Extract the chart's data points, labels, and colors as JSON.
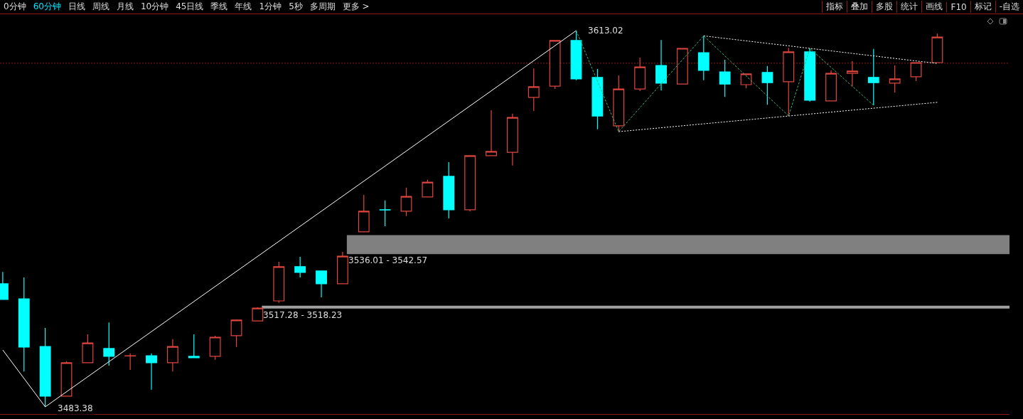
{
  "chart_data": {
    "type": "candlestick",
    "categories": [
      null,
      null,
      null,
      null,
      null,
      null,
      null,
      null,
      null,
      null,
      null,
      null,
      null,
      null,
      null,
      null,
      null,
      null,
      null,
      null,
      null,
      null,
      null,
      null,
      null,
      null,
      null,
      null,
      null,
      null,
      null,
      null,
      null,
      null,
      null,
      null,
      null,
      null,
      null,
      null,
      null,
      null,
      null,
      null,
      null
    ],
    "ohlc": [
      [
        3525.8,
        3529.9,
        3520.4,
        3520.4
      ],
      [
        3520.6,
        3528.0,
        3495.6,
        3504.0
      ],
      [
        3504.2,
        3510.6,
        3483.38,
        3487.1
      ],
      [
        3487.1,
        3499.1,
        3487.1,
        3498.6
      ],
      [
        3498.6,
        3508.4,
        3498.6,
        3505.4
      ],
      [
        3503.5,
        3512.5,
        3497.6,
        3500.8
      ],
      [
        3500.9,
        3501.8,
        3496.1,
        3501.0
      ],
      [
        3501.0,
        3501.8,
        3489.3,
        3498.6
      ],
      [
        3498.6,
        3506.7,
        3495.6,
        3504.2
      ],
      [
        3500.8,
        3508.4,
        3500.3,
        3500.3
      ],
      [
        3500.8,
        3507.9,
        3499.6,
        3507.4
      ],
      [
        3507.9,
        3513.5,
        3504.0,
        3513.3
      ],
      [
        3513.0,
        3517.7,
        3513.0,
        3517.4
      ],
      [
        3519.9,
        3533.4,
        3519.2,
        3531.7
      ],
      [
        3531.7,
        3535.1,
        3528.0,
        3529.7
      ],
      [
        3530.2,
        3530.4,
        3521.1,
        3525.8
      ],
      [
        3525.8,
        3536.8,
        3525.8,
        3535.3
      ],
      [
        3543.7,
        3556.4,
        3543.7,
        3550.8
      ],
      [
        3551.3,
        3554.5,
        3545.6,
        3551.2
      ],
      [
        3550.8,
        3558.9,
        3549.1,
        3555.9
      ],
      [
        3555.7,
        3561.6,
        3555.7,
        3560.8
      ],
      [
        3562.8,
        3567.7,
        3548.3,
        3551.3
      ],
      [
        3551.3,
        3569.9,
        3550.8,
        3569.9
      ],
      [
        3569.9,
        3585.6,
        3569.9,
        3571.4
      ],
      [
        3571.1,
        3584.4,
        3566.5,
        3583.1
      ],
      [
        3590.0,
        3600.0,
        3585.3,
        3593.7
      ],
      [
        3593.9,
        3609.6,
        3592.9,
        3609.6
      ],
      [
        3609.6,
        3613.02,
        3595.9,
        3596.4
      ],
      [
        3596.9,
        3599.8,
        3579.0,
        3583.6
      ],
      [
        3580.2,
        3597.6,
        3578.2,
        3592.9
      ],
      [
        3592.9,
        3603.7,
        3592.2,
        3600.5
      ],
      [
        3601.0,
        3609.8,
        3592.4,
        3594.9
      ],
      [
        3594.6,
        3606.9,
        3594.6,
        3606.9
      ],
      [
        3605.4,
        3611.2,
        3595.9,
        3599.3
      ],
      [
        3598.8,
        3603.0,
        3590.2,
        3594.6
      ],
      [
        3594.4,
        3598.1,
        3593.2,
        3598.1
      ],
      [
        3598.6,
        3600.8,
        3587.5,
        3595.1
      ],
      [
        3595.4,
        3607.1,
        3583.6,
        3605.7
      ],
      [
        3605.7,
        3606.9,
        3588.6,
        3589.0
      ],
      [
        3588.8,
        3599.3,
        3588.8,
        3598.3
      ],
      [
        3598.3,
        3602.5,
        3593.7,
        3599.1
      ],
      [
        3596.9,
        3606.7,
        3587.3,
        3595.1
      ],
      [
        3594.9,
        3601.0,
        3591.7,
        3596.4
      ],
      [
        3597.1,
        3602.0,
        3595.6,
        3602.0
      ],
      [
        3602.0,
        3612.0,
        3602.0,
        3610.8
      ]
    ],
    "colors": [
      "#00ffff",
      "#00ffff",
      "#00ffff",
      "#e0463e",
      "#e0463e",
      "#00ffff",
      "#e0463e",
      "#00ffff",
      "#e0463e",
      "#00ffff",
      "#e0463e",
      "#e0463e",
      "#e0463e",
      "#e0463e",
      "#00ffff",
      "#00ffff",
      "#e0463e",
      "#e0463e",
      "#00ffff",
      "#e0463e",
      "#e0463e",
      "#00ffff",
      "#e0463e",
      "#e0463e",
      "#e0463e",
      "#e0463e",
      "#e0463e",
      "#00ffff",
      "#00ffff",
      "#e0463e",
      "#e0463e",
      "#00ffff",
      "#e0463e",
      "#00ffff",
      "#00ffff",
      "#e0463e",
      "#00ffff",
      "#e0463e",
      "#00ffff",
      "#e0463e",
      "#e0463e",
      "#00ffff",
      "#e0463e",
      "#e0463e",
      "#e0463e"
    ],
    "series": [
      {
        "type": "line",
        "color": "#ffffff",
        "line_style": "solid",
        "values": [
          3503.0,
          null,
          3483.4,
          null,
          null,
          null,
          null,
          null,
          null,
          null,
          null,
          null,
          null,
          null,
          null,
          null,
          null,
          null,
          null,
          null,
          null,
          null,
          null,
          null,
          null,
          null,
          null,
          3613.0,
          null,
          null,
          null,
          null,
          null,
          null,
          null,
          null,
          null,
          null,
          null,
          null,
          null,
          null,
          null,
          null,
          null
        ]
      },
      {
        "type": "line",
        "color": "#3cb371",
        "line_style": "dashed",
        "values": [
          null,
          null,
          null,
          null,
          null,
          null,
          null,
          null,
          null,
          null,
          null,
          null,
          null,
          null,
          null,
          null,
          null,
          null,
          null,
          null,
          null,
          null,
          null,
          null,
          null,
          null,
          null,
          3613.0,
          null,
          3578.2,
          null,
          null,
          null,
          3611.2,
          null,
          null,
          null,
          3583.6,
          3606.9,
          null,
          null,
          3587.3,
          null,
          null,
          null
        ]
      },
      {
        "type": "line",
        "color": "#ffffff",
        "line_style": "dotted",
        "values": [
          null,
          null,
          null,
          null,
          null,
          null,
          null,
          null,
          null,
          null,
          null,
          null,
          null,
          null,
          null,
          null,
          null,
          null,
          null,
          null,
          null,
          null,
          null,
          null,
          null,
          null,
          null,
          null,
          null,
          null,
          null,
          null,
          null,
          3611.2,
          null,
          null,
          null,
          null,
          3606.9,
          null,
          null,
          null,
          null,
          null,
          3601.7
        ]
      },
      {
        "type": "line",
        "color": "#ffffff",
        "line_style": "dotted",
        "values": [
          null,
          null,
          null,
          null,
          null,
          null,
          null,
          null,
          null,
          null,
          null,
          null,
          null,
          null,
          null,
          null,
          null,
          null,
          null,
          null,
          null,
          null,
          null,
          null,
          null,
          null,
          null,
          null,
          null,
          3578.2,
          null,
          null,
          null,
          null,
          null,
          null,
          null,
          3583.6,
          null,
          null,
          null,
          null,
          null,
          null,
          3588.3
        ]
      }
    ],
    "bands": [
      {
        "axis": "y",
        "from": 3536.01,
        "to": 3542.57,
        "label": "3536.01 - 3542.57",
        "color": "#808080"
      },
      {
        "axis": "y",
        "from": 3517.28,
        "to": 3518.23,
        "label": "3517.28 - 3518.23",
        "color": "#a0a0a0"
      }
    ],
    "ref_lines": [
      {
        "axis": "y",
        "value": 3601.8,
        "color": "#8b1a1a",
        "line_style": "dotted"
      }
    ],
    "annotations": [
      "0分钟",
      "60分钟",
      "日线",
      "周线",
      "月线",
      "10分钟",
      "45日线",
      "季线",
      "年线",
      "1分钟",
      "5秒",
      "多周期",
      "更多 >",
      "指标",
      "叠加",
      "多股",
      "统计",
      "画线",
      "F10",
      "标记",
      "-自选",
      "3613.02",
      "3483.38"
    ],
    "grid": false
  }
}
